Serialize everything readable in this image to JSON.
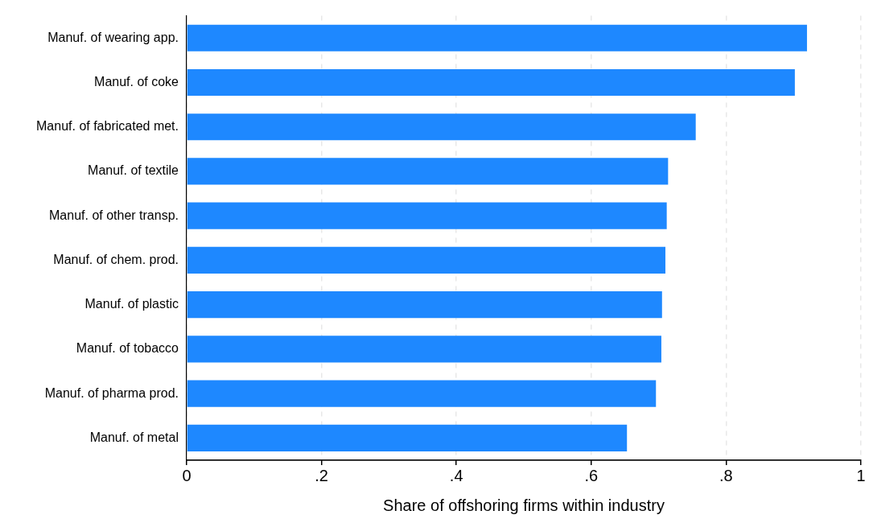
{
  "chart_data": {
    "type": "bar",
    "orientation": "horizontal",
    "categories": [
      "Manuf. of wearing app.",
      "Manuf. of coke",
      "Manuf. of fabricated met.",
      "Manuf. of textile",
      "Manuf. of other transp.",
      "Manuf. of chem. prod.",
      "Manuf. of plastic",
      "Manuf. of tobacco",
      "Manuf. of pharma prod.",
      "Manuf. of metal"
    ],
    "values": [
      0.92,
      0.902,
      0.755,
      0.714,
      0.712,
      0.71,
      0.705,
      0.704,
      0.696,
      0.653
    ],
    "color": "#1e88ff",
    "xlabel": "Share of offshoring firms within industry",
    "xlim": [
      0,
      1
    ],
    "xticks": [
      0,
      {
        "value": 0.2,
        "label": ".2"
      },
      {
        "value": 0.4,
        "label": ".4"
      },
      {
        "value": 0.6,
        "label": ".6"
      },
      {
        "value": 0.8,
        "label": ".8"
      },
      1
    ],
    "grid": "x",
    "legend": false
  }
}
